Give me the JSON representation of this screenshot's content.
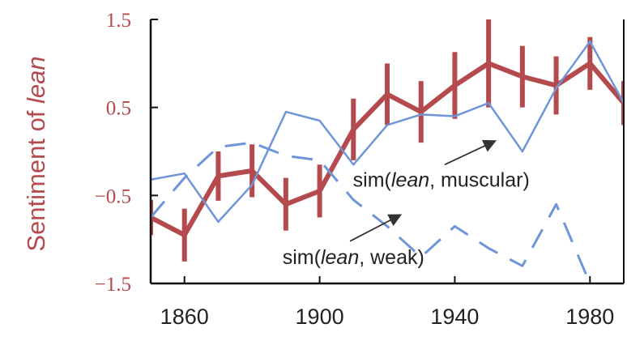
{
  "chart_data": {
    "type": "line",
    "ylabel": {
      "prefix": "Sentiment of ",
      "emphasis": "lean"
    },
    "xlim": [
      1850,
      1990
    ],
    "ylim": [
      -1.5,
      1.5
    ],
    "x_ticks": [
      1860,
      1900,
      1940,
      1980
    ],
    "x_tick_labels": [
      "1860",
      "1900",
      "1940",
      "1980"
    ],
    "y_ticks": [
      1.5,
      0.5,
      -0.5,
      -1.5
    ],
    "y_tick_labels": [
      "1.5",
      "0.5",
      "−0.5",
      "−1.5"
    ],
    "grid": false,
    "colors": {
      "sentiment": "#b54a4e",
      "muscular": "#6f95d8",
      "weak": "#6f95d8",
      "axis": "#111111",
      "arrow": "#333333"
    },
    "series": [
      {
        "key": "sentiment",
        "style": "thick-solid-with-error-bars",
        "x": [
          1850,
          1860,
          1870,
          1880,
          1890,
          1900,
          1910,
          1920,
          1930,
          1940,
          1950,
          1960,
          1970,
          1980,
          1990
        ],
        "values": [
          -0.75,
          -0.95,
          -0.28,
          -0.22,
          -0.6,
          -0.45,
          0.25,
          0.65,
          0.45,
          0.75,
          1.0,
          0.85,
          0.75,
          1.0,
          0.55
        ],
        "error": [
          0.2,
          0.3,
          0.28,
          0.3,
          0.3,
          0.3,
          0.35,
          0.35,
          0.35,
          0.38,
          0.5,
          0.35,
          0.33,
          0.3,
          0.25
        ]
      },
      {
        "key": "muscular",
        "style": "thin-solid",
        "x": [
          1850,
          1860,
          1870,
          1880,
          1890,
          1900,
          1910,
          1920,
          1930,
          1940,
          1950,
          1960,
          1970,
          1980,
          1990
        ],
        "values": [
          -0.32,
          -0.25,
          -0.8,
          -0.38,
          0.45,
          0.35,
          -0.15,
          0.3,
          0.42,
          0.4,
          0.55,
          0.0,
          0.72,
          1.25,
          0.55
        ]
      },
      {
        "key": "weak",
        "style": "dashed",
        "x": [
          1850,
          1860,
          1870,
          1880,
          1890,
          1900,
          1910,
          1920,
          1930,
          1940,
          1950,
          1960,
          1970,
          1980
        ],
        "values": [
          -0.75,
          -0.3,
          0.05,
          0.1,
          -0.05,
          -0.1,
          -0.55,
          -0.85,
          -1.2,
          -0.85,
          -1.1,
          -1.3,
          -0.6,
          -1.5
        ]
      }
    ],
    "annotations": [
      {
        "key": "ann-muscular",
        "prefix": "sim(",
        "emphasis": "lean",
        "suffix": ", muscular)",
        "x": 1936,
        "y": -0.4,
        "anchor": "middle",
        "arrow_from": [
          1937,
          -0.15
        ],
        "arrow_to": [
          1952,
          0.12
        ]
      },
      {
        "key": "ann-weak",
        "prefix": "sim(",
        "emphasis": "lean",
        "suffix": ", weak)",
        "x": 1910,
        "y": -1.28,
        "anchor": "middle",
        "arrow_from": [
          1909,
          -1.02
        ],
        "arrow_to": [
          1924,
          -0.72
        ]
      }
    ]
  }
}
